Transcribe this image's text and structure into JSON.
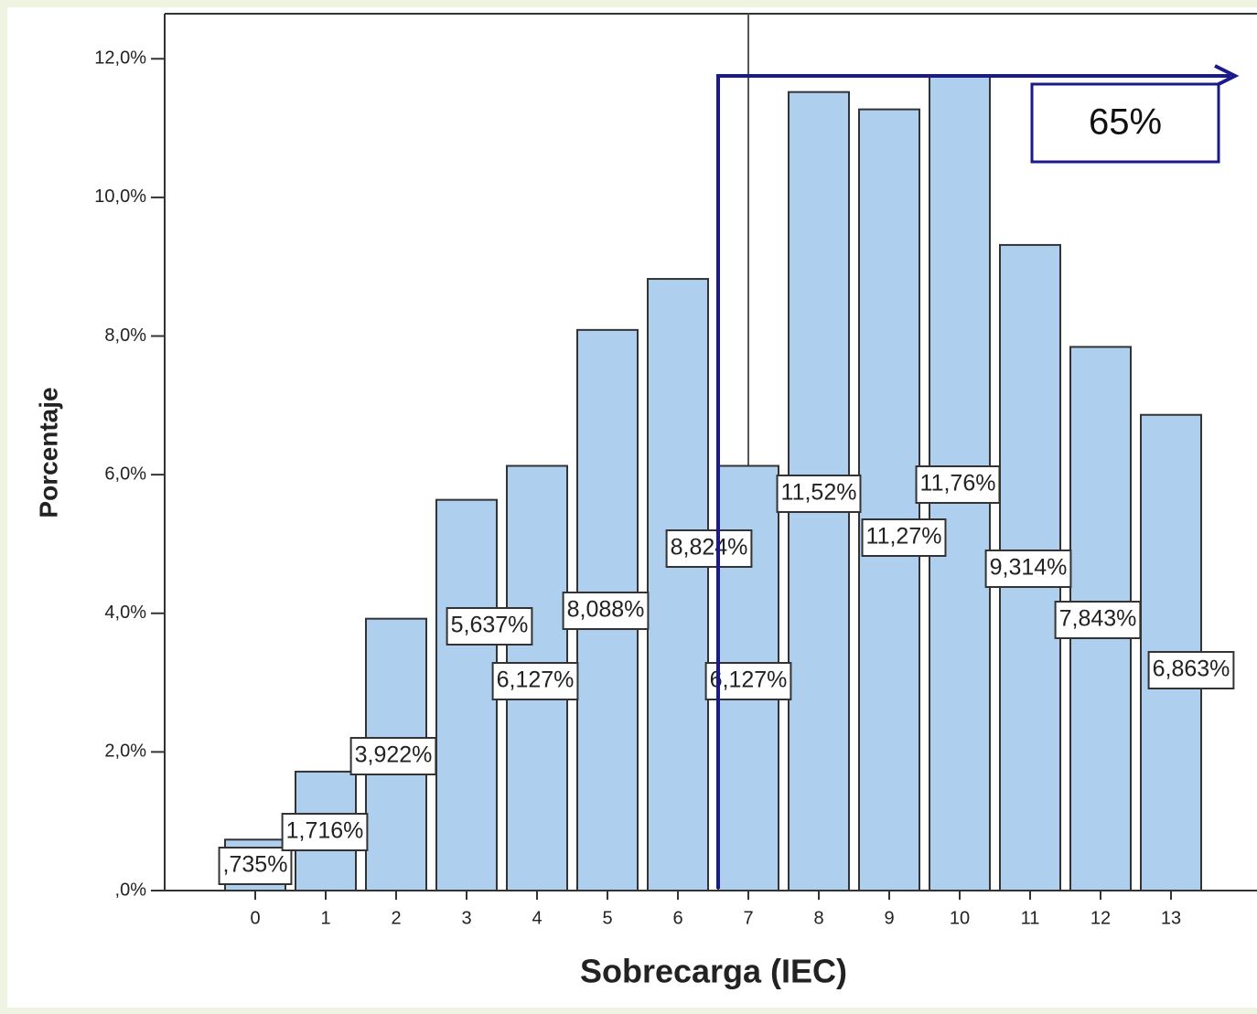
{
  "chart_data": {
    "type": "bar",
    "x_label": "Sobrecarga (IEC)",
    "y_label": "Porcentaje",
    "categories": [
      "0",
      "1",
      "2",
      "3",
      "4",
      "5",
      "6",
      "7",
      "8",
      "9",
      "10",
      "11",
      "12",
      "13"
    ],
    "values": [
      0.735,
      1.716,
      3.922,
      5.637,
      6.127,
      8.088,
      8.824,
      6.127,
      11.52,
      11.27,
      11.76,
      9.314,
      7.843,
      6.863
    ],
    "value_labels": [
      ",735%",
      "1,716%",
      "3,922%",
      "5,637%",
      "6,127%",
      "8,088%",
      "8,824%",
      "6,127%",
      "11,52%",
      "11,27%",
      "11,76%",
      "9,314%",
      "7,843%",
      "6,863%"
    ],
    "color": "#aecfee",
    "ylim": [
      0,
      12.65
    ],
    "yticks": [
      {
        "value": 0,
        "label": ",0%"
      },
      {
        "value": 2,
        "label": "2,0%"
      },
      {
        "value": 4,
        "label": "4,0%"
      },
      {
        "value": 6,
        "label": "6,0%"
      },
      {
        "value": 8,
        "label": "8,0%"
      },
      {
        "value": 10,
        "label": "10,0%"
      },
      {
        "value": 12,
        "label": "12,0%"
      }
    ],
    "annotation": "65%"
  }
}
